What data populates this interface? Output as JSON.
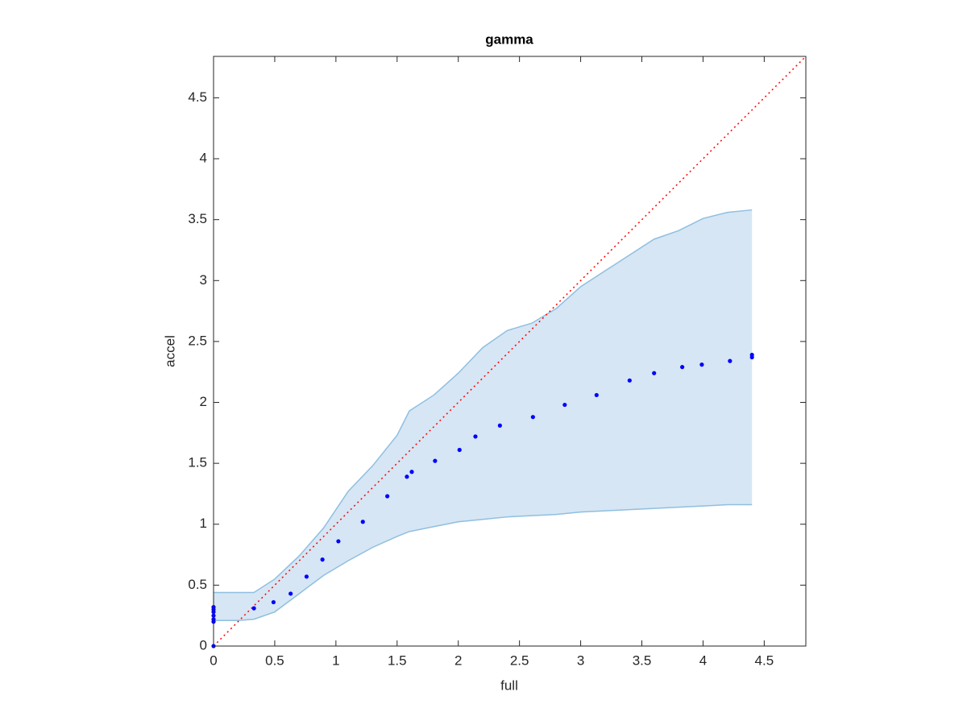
{
  "chart_data": {
    "type": "scatter",
    "title": "gamma",
    "x_label": "full",
    "y_label": "accel",
    "xlim": [
      0,
      4.84
    ],
    "ylim": [
      0,
      4.84
    ],
    "xticks": [
      0,
      0.5,
      1,
      1.5,
      2,
      2.5,
      3,
      3.5,
      4,
      4.5
    ],
    "yticks": [
      0,
      0.5,
      1,
      1.5,
      2,
      2.5,
      3,
      3.5,
      4,
      4.5
    ],
    "reference_line_color": "#ff0000",
    "band": {
      "color": "#d6e6f4",
      "edge_color": "#8fbfe0",
      "x": [
        0,
        0.2,
        0.33,
        0.5,
        0.7,
        0.9,
        1.1,
        1.3,
        1.5,
        1.6,
        1.8,
        2.0,
        2.2,
        2.4,
        2.6,
        2.8,
        3.0,
        3.2,
        3.4,
        3.6,
        3.8,
        4.0,
        4.2,
        4.4
      ],
      "lower": [
        0.21,
        0.21,
        0.22,
        0.28,
        0.43,
        0.58,
        0.7,
        0.81,
        0.9,
        0.94,
        0.98,
        1.02,
        1.04,
        1.06,
        1.07,
        1.08,
        1.1,
        1.11,
        1.12,
        1.13,
        1.14,
        1.15,
        1.16,
        1.16
      ],
      "upper": [
        0.44,
        0.44,
        0.44,
        0.55,
        0.74,
        0.97,
        1.27,
        1.48,
        1.73,
        1.93,
        2.06,
        2.24,
        2.45,
        2.59,
        2.65,
        2.77,
        2.95,
        3.08,
        3.21,
        3.34,
        3.41,
        3.51,
        3.56,
        3.58
      ]
    },
    "series": [
      {
        "color": "#0000ff",
        "x": [
          0,
          0,
          0,
          0,
          0,
          0,
          0,
          0.33,
          0.49,
          0.63,
          0.76,
          0.89,
          1.02,
          1.22,
          1.42,
          1.58,
          1.62,
          1.81,
          2.01,
          2.14,
          2.34,
          2.61,
          2.87,
          3.13,
          3.4,
          3.6,
          3.83,
          3.99,
          4.22,
          4.4,
          4.4
        ],
        "y": [
          0,
          0.2,
          0.22,
          0.25,
          0.28,
          0.3,
          0.32,
          0.31,
          0.36,
          0.43,
          0.57,
          0.71,
          0.86,
          1.02,
          1.23,
          1.39,
          1.43,
          1.52,
          1.61,
          1.72,
          1.81,
          1.88,
          1.98,
          2.06,
          2.18,
          2.24,
          2.29,
          2.31,
          2.34,
          2.37,
          2.39
        ]
      }
    ]
  }
}
